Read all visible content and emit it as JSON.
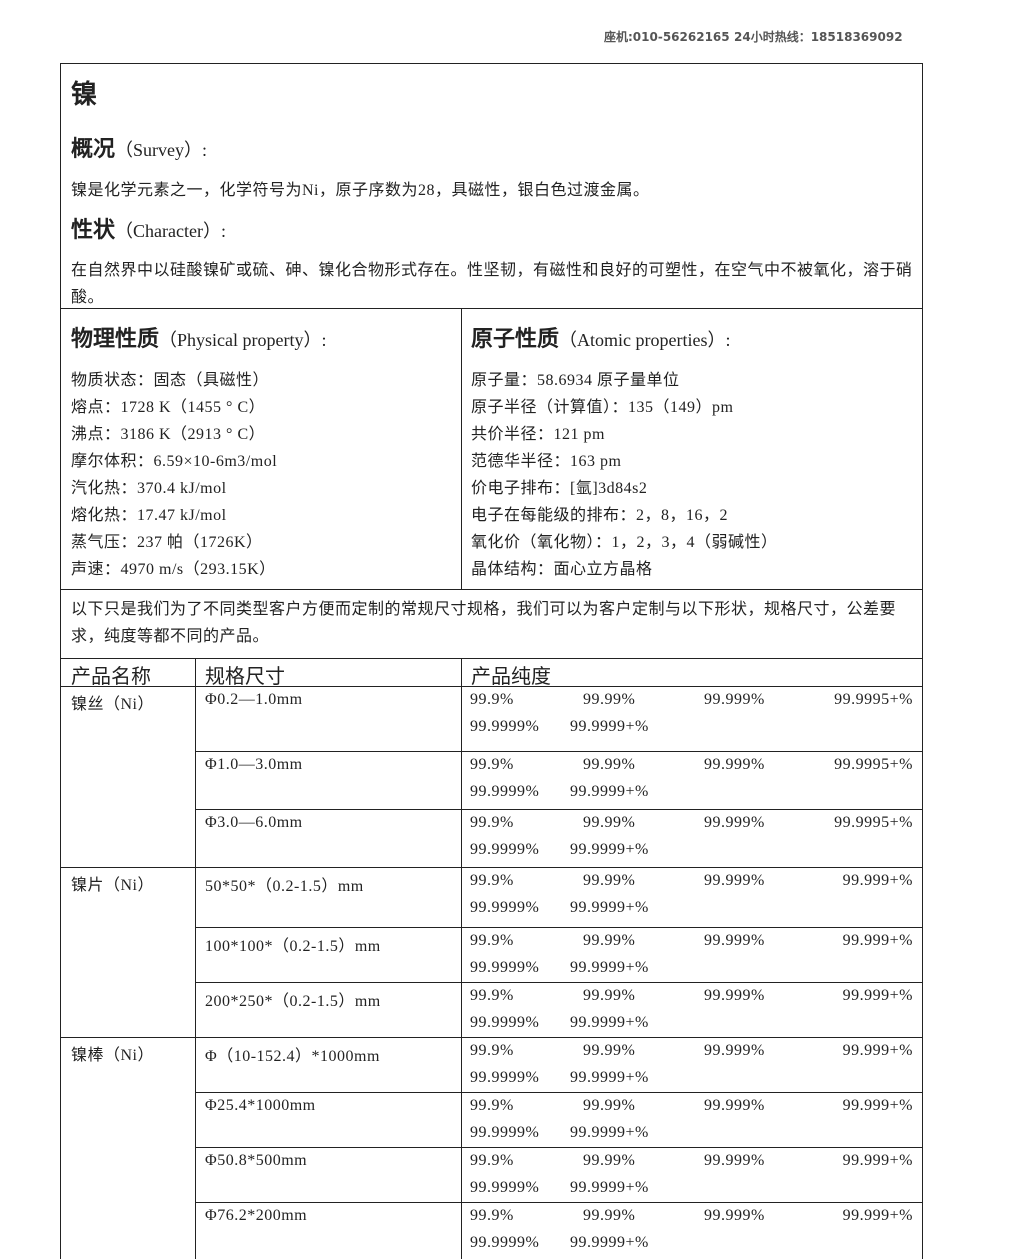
{
  "header": {
    "phone": "座机:010-56262165",
    "hotline": "24小时热线：18518369092"
  },
  "doc": {
    "title": "镍",
    "survey": {
      "heading": "概况",
      "heading_en": "（Survey）:",
      "text": "镍是化学元素之一，化学符号为Ni，原子序数为28，具磁性，银白色过渡金属。"
    },
    "character": {
      "heading": "性状",
      "heading_en": "（Character）:",
      "text": "在自然界中以硅酸镍矿或硫、砷、镍化合物形式存在。性坚韧，有磁性和良好的可塑性，在空气中不被氧化，溶于硝酸。"
    },
    "physical": {
      "heading": "物理性质",
      "heading_en": "（Physical property）:",
      "items": [
        "物质状态：固态（具磁性）",
        "熔点：1728 K（1455 ° C）",
        "沸点：3186 K（2913 ° C）",
        "摩尔体积：6.59×10-6m3/mol",
        "汽化热：370.4 kJ/mol",
        "熔化热：17.47 kJ/mol",
        "蒸气压：237 帕（1726K）",
        "声速：4970 m/s（293.15K）"
      ]
    },
    "atomic": {
      "heading": "原子性质",
      "heading_en": "（Atomic properties）:",
      "items": [
        "原子量：58.6934 原子量单位",
        "原子半径（计算值）：135（149）pm",
        "共价半径：121 pm",
        "范德华半径：163 pm",
        "价电子排布：[氩]3d84s2",
        "电子在每能级的排布：2，8，16，2",
        "氧化价（氧化物）：1，2，3，4（弱碱性）",
        "晶体结构：面心立方晶格"
      ]
    },
    "note": "以下只是我们为了不同类型客户方便而定制的常规尺寸规格，我们可以为客户定制与以下形状，规格尺寸，公差要求，纯度等都不同的产品。",
    "table": {
      "headers": [
        "产品名称",
        "规格尺寸",
        "产品纯度"
      ],
      "groups": [
        {
          "name": "镍丝（Ni）",
          "rows": [
            {
              "spec": "Φ0.2—1.0mm",
              "purity": [
                "99.9%",
                "99.99%",
                "99.999%",
                "99.9995+%",
                "99.9999%",
                "99.9999+%"
              ]
            },
            {
              "spec": "Φ1.0—3.0mm",
              "purity": [
                "99.9%",
                "99.99%",
                "99.999%",
                "99.9995+%",
                "99.9999%",
                "99.9999+%"
              ]
            },
            {
              "spec": "Φ3.0—6.0mm",
              "purity": [
                "99.9%",
                "99.99%",
                "99.999%",
                "99.9995+%",
                "99.9999%",
                "99.9999+%"
              ]
            }
          ]
        },
        {
          "name": "镍片（Ni）",
          "rows": [
            {
              "spec": "50*50*（0.2-1.5）mm",
              "purity": [
                "99.9%",
                "99.99%",
                "99.999%",
                "99.999+%",
                "99.9999%",
                "99.9999+%"
              ]
            },
            {
              "spec": "100*100*（0.2-1.5）mm",
              "purity": [
                "99.9%",
                "99.99%",
                "99.999%",
                "99.999+%",
                "99.9999%",
                "99.9999+%"
              ]
            },
            {
              "spec": "200*250*（0.2-1.5）mm",
              "purity": [
                "99.9%",
                "99.99%",
                "99.999%",
                "99.999+%",
                "99.9999%",
                "99.9999+%"
              ]
            }
          ]
        },
        {
          "name": "镍棒（Ni）",
          "rows": [
            {
              "spec": "Φ（10-152.4）*1000mm",
              "purity": [
                "99.9%",
                "99.99%",
                "99.999%",
                "99.999+%",
                "99.9999%",
                "99.9999+%"
              ]
            },
            {
              "spec": "Φ25.4*1000mm",
              "purity": [
                "99.9%",
                "99.99%",
                "99.999%",
                "99.999+%",
                "99.9999%",
                "99.9999+%"
              ]
            },
            {
              "spec": "Φ50.8*500mm",
              "purity": [
                "99.9%",
                "99.99%",
                "99.999%",
                "99.999+%",
                "99.9999%",
                "99.9999+%"
              ]
            },
            {
              "spec": "Φ76.2*200mm",
              "purity": [
                "99.9%",
                "99.99%",
                "99.999%",
                "99.999+%",
                "99.9999%",
                "99.9999+%"
              ]
            }
          ]
        }
      ]
    }
  }
}
